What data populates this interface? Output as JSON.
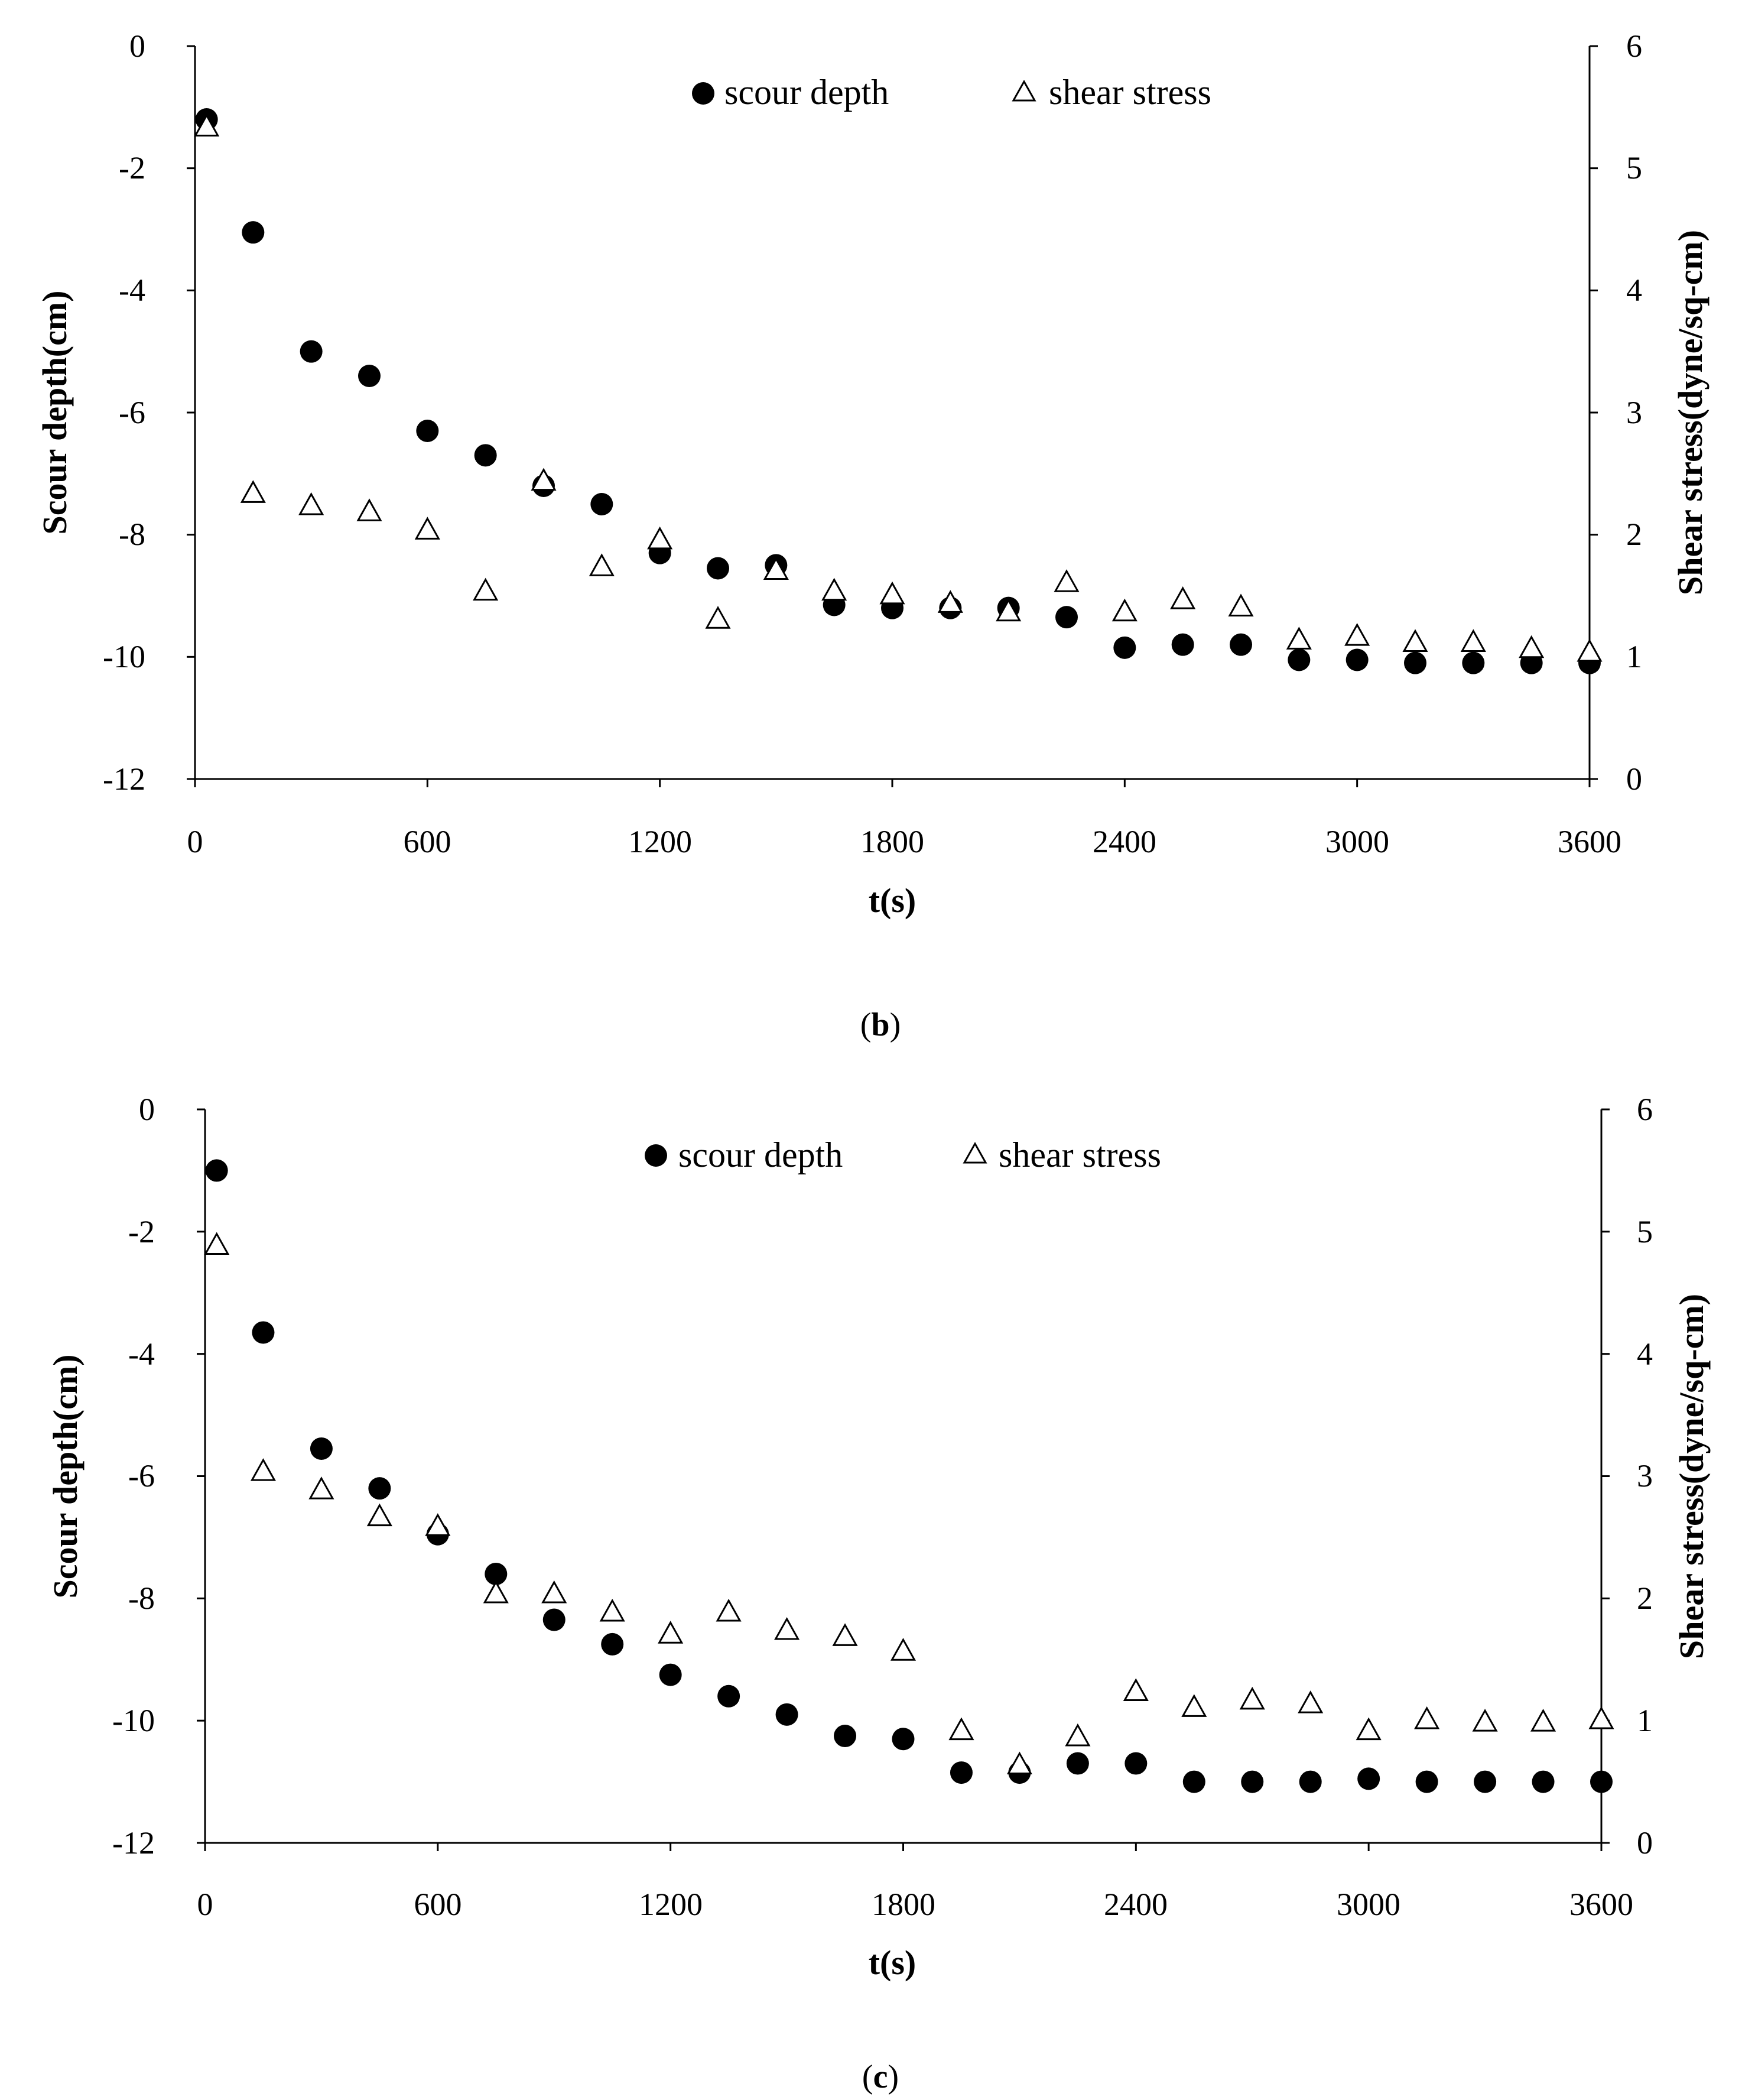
{
  "chart_data": [
    {
      "type": "scatter",
      "panel_label": "b",
      "xlabel": "t(s)",
      "ylabel_left": "Scour depth(cm)",
      "ylabel_right": "Shear stress(dyne/sq-cm)",
      "xlim": [
        0,
        3600
      ],
      "ylim_left": [
        -12,
        0
      ],
      "ylim_right": [
        0,
        6
      ],
      "xticks": [
        "0",
        "600",
        "1200",
        "1800",
        "2400",
        "3000",
        "3600"
      ],
      "yticks_left": [
        "0",
        "-2",
        "-4",
        "-6",
        "-8",
        "-10",
        "-12"
      ],
      "yticks_right": [
        "6",
        "5",
        "4",
        "3",
        "2",
        "1",
        "0"
      ],
      "legend": {
        "placement": "top-center",
        "entries": [
          "scour depth",
          "shear stress"
        ]
      },
      "series": [
        {
          "name": "scour depth",
          "axis": "left",
          "marker": "filled-circle",
          "x": [
            30,
            150,
            300,
            450,
            600,
            750,
            900,
            1050,
            1200,
            1350,
            1500,
            1650,
            1800,
            1950,
            2100,
            2250,
            2400,
            2550,
            2700,
            2850,
            3000,
            3150,
            3300,
            3450,
            3600
          ],
          "values": [
            -1.2,
            -3.05,
            -5.0,
            -5.4,
            -6.3,
            -6.7,
            -7.2,
            -7.5,
            -8.3,
            -8.55,
            -8.5,
            -9.15,
            -9.2,
            -9.2,
            -9.2,
            -9.35,
            -9.85,
            -9.8,
            -9.8,
            -10.05,
            -10.05,
            -10.1,
            -10.1,
            -10.1,
            -10.1
          ]
        },
        {
          "name": "shear stress",
          "axis": "right",
          "marker": "open-triangle",
          "x": [
            30,
            150,
            300,
            450,
            600,
            750,
            900,
            1050,
            1200,
            1350,
            1500,
            1650,
            1800,
            1950,
            2100,
            2250,
            2400,
            2550,
            2700,
            2850,
            3000,
            3150,
            3300,
            3450,
            3600
          ],
          "values": [
            5.35,
            2.35,
            2.25,
            2.2,
            2.05,
            1.55,
            2.45,
            1.75,
            1.97,
            1.32,
            1.72,
            1.55,
            1.52,
            1.45,
            1.38,
            1.62,
            1.38,
            1.48,
            1.42,
            1.15,
            1.18,
            1.13,
            1.13,
            1.08,
            1.05
          ]
        }
      ]
    },
    {
      "type": "scatter",
      "panel_label": "c",
      "xlabel": "t(s)",
      "ylabel_left": "Scour depth(cm)",
      "ylabel_right": "Shear stress(dyne/sq-cm)",
      "xlim": [
        0,
        3600
      ],
      "ylim_left": [
        -12,
        0
      ],
      "ylim_right": [
        0,
        6
      ],
      "xticks": [
        "0",
        "600",
        "1200",
        "1800",
        "2400",
        "3000",
        "3600"
      ],
      "yticks_left": [
        "0",
        "-2",
        "-4",
        "-6",
        "-8",
        "-10",
        "-12"
      ],
      "yticks_right": [
        "6",
        "5",
        "4",
        "3",
        "2",
        "1",
        "0"
      ],
      "legend": {
        "placement": "top-center",
        "entries": [
          "scour depth",
          "shear stress"
        ]
      },
      "series": [
        {
          "name": "scour depth",
          "axis": "left",
          "marker": "filled-circle",
          "x": [
            30,
            150,
            300,
            450,
            600,
            750,
            900,
            1050,
            1200,
            1350,
            1500,
            1650,
            1800,
            1950,
            2100,
            2250,
            2400,
            2550,
            2700,
            2850,
            3000,
            3150,
            3300,
            3450,
            3600
          ],
          "values": [
            -1.0,
            -3.65,
            -5.55,
            -6.2,
            -6.95,
            -7.6,
            -8.35,
            -8.75,
            -9.25,
            -9.6,
            -9.9,
            -10.25,
            -10.3,
            -10.85,
            -10.85,
            -10.7,
            -10.7,
            -11.0,
            -11.0,
            -11.0,
            -10.95,
            -11.0,
            -11.0,
            -11.0,
            -11.0
          ]
        },
        {
          "name": "shear stress",
          "axis": "right",
          "marker": "open-triangle",
          "x": [
            30,
            150,
            300,
            450,
            600,
            750,
            900,
            1050,
            1200,
            1350,
            1500,
            1650,
            1800,
            1950,
            2100,
            2250,
            2400,
            2550,
            2700,
            2850,
            3000,
            3150,
            3300,
            3450,
            3600
          ],
          "values": [
            4.9,
            3.05,
            2.9,
            2.68,
            2.6,
            2.05,
            2.05,
            1.9,
            1.72,
            1.9,
            1.75,
            1.7,
            1.58,
            0.93,
            0.65,
            0.88,
            1.25,
            1.12,
            1.18,
            1.15,
            0.93,
            1.02,
            1.0,
            1.0,
            1.02
          ]
        }
      ]
    }
  ]
}
